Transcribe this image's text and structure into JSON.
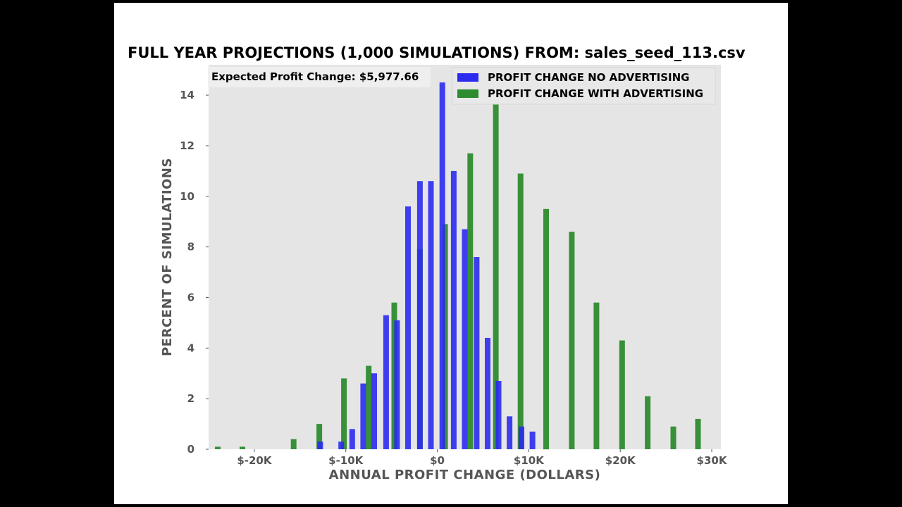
{
  "chart_data": {
    "type": "bar",
    "title": "FULL YEAR PROJECTIONS (1,000 SIMULATIONS)  FROM: sales_seed_113.csv",
    "xlabel": "ANNUAL PROFIT CHANGE (DOLLARS)",
    "ylabel": "PERCENT OF SIMULATIONS",
    "xlim": [
      -25000,
      31000
    ],
    "ylim": [
      0,
      15.2
    ],
    "xticks": [
      -20000,
      -10000,
      0,
      10000,
      20000,
      30000
    ],
    "xtick_labels": [
      "$-20K",
      "$-10K",
      "$0",
      "$10K",
      "$20K",
      "$30K"
    ],
    "yticks": [
      0,
      2,
      4,
      6,
      8,
      10,
      12,
      14
    ],
    "ytick_labels": [
      "0",
      "2",
      "4",
      "6",
      "8",
      "10",
      "12",
      "14"
    ],
    "grid": false,
    "legend_position": "top-right",
    "annotation": "Expected Profit Change: $5,977.66",
    "series": [
      {
        "name": "PROFIT CHANGE NO ADVERTISING",
        "color": "#2b2bf0",
        "x": [
          -12800,
          -10500,
          -9300,
          -8100,
          -6900,
          -5600,
          -4400,
          -3200,
          -1900,
          -700,
          550,
          1800,
          3000,
          4300,
          5500,
          6700,
          7900,
          9200,
          10400
        ],
        "values": [
          0.3,
          0.3,
          0.8,
          2.6,
          3.0,
          5.3,
          5.1,
          9.6,
          10.6,
          10.6,
          14.5,
          11.0,
          8.7,
          7.6,
          4.4,
          2.7,
          1.3,
          0.9,
          0.7
        ]
      },
      {
        "name": "PROFIT CHANGE WITH ADVERTISING",
        "color": "#2e8b2e",
        "x": [
          -24000,
          -21300,
          -15700,
          -12900,
          -10200,
          -7500,
          -4700,
          -1900,
          850,
          3600,
          6400,
          9100,
          11900,
          14700,
          17400,
          20200,
          23000,
          25800,
          28500
        ],
        "values": [
          0.1,
          0.1,
          0.4,
          1.0,
          2.8,
          3.3,
          5.8,
          7.9,
          8.9,
          11.7,
          14.7,
          10.9,
          9.5,
          8.6,
          5.8,
          4.3,
          2.1,
          0.9,
          1.2
        ]
      }
    ]
  }
}
